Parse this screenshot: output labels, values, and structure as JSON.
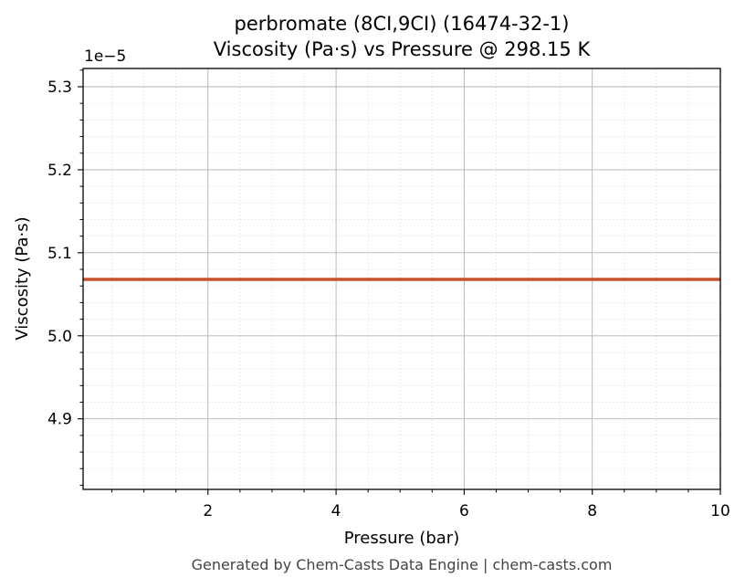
{
  "chart_data": {
    "type": "line",
    "title": "perbromate (8CI,9CI) (16474-32-1)",
    "subtitle": "Viscosity (Pa·s) vs Pressure @ 298.15 K",
    "xlabel": "Pressure (bar)",
    "ylabel": "Viscosity (Pa·s)",
    "y_offset_label": "1e−5",
    "xlim": [
      0.05,
      10
    ],
    "ylim": [
      4.815,
      5.322
    ],
    "x_ticks": [
      2,
      4,
      6,
      8,
      10
    ],
    "y_ticks": [
      4.9,
      5.0,
      5.1,
      5.2,
      5.3
    ],
    "x_tick_labels": [
      "2",
      "4",
      "6",
      "8",
      "10"
    ],
    "y_tick_labels": [
      "4.9",
      "5.0",
      "5.1",
      "5.2",
      "5.3"
    ],
    "grid": true,
    "series": [
      {
        "color": "#c8532a",
        "x": [
          0.05,
          10
        ],
        "y": [
          5.068,
          5.068
        ]
      }
    ]
  },
  "footer": "Generated by Chem-Casts Data Engine | chem-casts.com"
}
